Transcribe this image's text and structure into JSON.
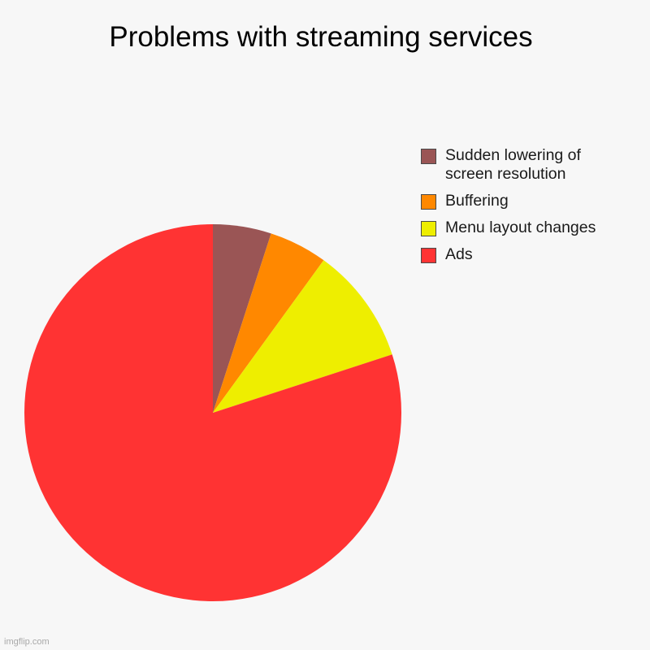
{
  "title": "Problems with streaming services",
  "watermark": "imgflip.com",
  "chart_data": {
    "type": "pie",
    "title": "Problems with streaming services",
    "legend_placement": "top-right",
    "slices": [
      {
        "label": "Sudden lowering of screen resolution",
        "value": 5,
        "color": "#9a5555"
      },
      {
        "label": "Buffering",
        "value": 5,
        "color": "#ff8800"
      },
      {
        "label": "Menu layout changes",
        "value": 10,
        "color": "#eeee00"
      },
      {
        "label": "Ads",
        "value": 80,
        "color": "#ff3333"
      }
    ]
  }
}
